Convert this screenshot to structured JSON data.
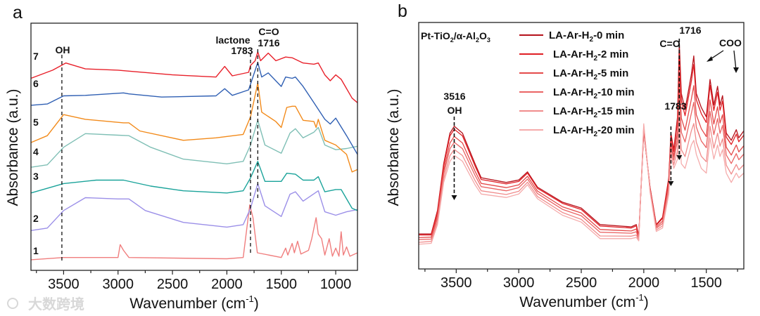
{
  "watermark": "大数跨境",
  "chart_data": [
    {
      "type": "line",
      "panel_label": "a",
      "xlabel": "Wavenumber (cm",
      "xlabel_sup": "-1",
      "xlabel_end": ")",
      "ylabel": "Absorbance (a.u.)",
      "xlim": [
        3800,
        800
      ],
      "ylim": [
        0,
        100
      ],
      "x_reversed": true,
      "xticks": [
        3500,
        3000,
        2500,
        2000,
        1500,
        1000
      ],
      "grid": false,
      "annotations": {
        "oh": "OH",
        "lactone": "lactone",
        "lactone_wn": "1783",
        "co": "C=O",
        "co_wn": "1716"
      },
      "reference_lines": [
        3516,
        1783,
        1716
      ],
      "series": [
        {
          "name": "1",
          "color": "#f07e7e",
          "x": [
            3800,
            3500,
            3000,
            2980,
            2950,
            2900,
            2000,
            1850,
            1790,
            1760,
            1720,
            1500,
            1460,
            1440,
            1400,
            1380,
            1350,
            1320,
            1250,
            1220,
            1180,
            1160,
            1130,
            1100,
            1060,
            1030,
            1000,
            970,
            950,
            930,
            900,
            870,
            800
          ],
          "y": [
            4.3,
            5.2,
            5.2,
            10.4,
            8.1,
            5.2,
            4.7,
            5.2,
            26.5,
            21.3,
            7.1,
            5.2,
            9.0,
            6.2,
            10.9,
            7.1,
            11.8,
            6.6,
            8.1,
            12.8,
            21.3,
            14.7,
            12.8,
            6.2,
            12.8,
            5.7,
            9.0,
            5.7,
            15.6,
            6.2,
            9.5,
            5.7,
            7.1
          ]
        },
        {
          "name": "2",
          "color": "#9b8fe8",
          "x": [
            3800,
            3650,
            3500,
            3300,
            3000,
            2900,
            2750,
            2400,
            2000,
            1850,
            1783,
            1716,
            1650,
            1500,
            1420,
            1370,
            1300,
            1160,
            1100,
            1000,
            900,
            800
          ],
          "y": [
            16.1,
            17.1,
            24.2,
            29.4,
            28.9,
            28.9,
            24.2,
            19.4,
            17.5,
            18.5,
            25.1,
            35.1,
            26.1,
            21.8,
            30.8,
            31.8,
            28.0,
            32.2,
            23.7,
            22.3,
            23.7,
            24.6
          ]
        },
        {
          "name": "3",
          "color": "#1aa39a",
          "x": [
            3800,
            3500,
            3200,
            2950,
            2700,
            2400,
            2000,
            1850,
            1783,
            1716,
            1650,
            1500,
            1450,
            1370,
            1300,
            1200,
            1160,
            1100,
            1000,
            950,
            850,
            800
          ],
          "y": [
            31.3,
            35.1,
            36.5,
            36.5,
            34.1,
            32.2,
            31.3,
            32.2,
            37.4,
            44.1,
            36.0,
            36.0,
            39.3,
            38.9,
            36.5,
            36.5,
            37.9,
            31.8,
            32.7,
            32.7,
            25.1,
            24.2
          ]
        },
        {
          "name": "4",
          "color": "#7fbfb5",
          "x": [
            3800,
            3650,
            3500,
            3300,
            3000,
            2900,
            2700,
            2400,
            2000,
            1850,
            1783,
            1716,
            1650,
            1500,
            1420,
            1370,
            1300,
            1200,
            1160,
            1100,
            1000,
            900,
            800
          ],
          "y": [
            41.7,
            42.7,
            49.8,
            55.3,
            54.7,
            54.5,
            49.8,
            45.0,
            43.1,
            44.1,
            50.7,
            60.7,
            50.7,
            47.4,
            55.5,
            57.3,
            53.6,
            55.9,
            57.8,
            50.7,
            48.8,
            49.3,
            50.2
          ]
        },
        {
          "name": "5",
          "color": "#f28a1a",
          "x": [
            3800,
            3650,
            3500,
            3300,
            2950,
            2900,
            2800,
            2400,
            2100,
            1850,
            1783,
            1716,
            1680,
            1550,
            1500,
            1450,
            1400,
            1370,
            1300,
            1200,
            1180,
            1160,
            1100,
            1000,
            900,
            850,
            800
          ],
          "y": [
            51.7,
            54.5,
            63.0,
            61.1,
            59.7,
            59.7,
            56.4,
            52.6,
            53.6,
            55.0,
            62.1,
            75.8,
            64.0,
            60.2,
            57.8,
            65.9,
            66.4,
            66.4,
            60.7,
            60.2,
            57.8,
            61.1,
            52.6,
            50.7,
            46.9,
            39.8,
            40.8
          ]
        },
        {
          "name": "6",
          "color": "#2f5fb3",
          "x": [
            3800,
            3650,
            3500,
            3300,
            2950,
            2900,
            2600,
            2100,
            2020,
            1950,
            1800,
            1716,
            1680,
            1620,
            1500,
            1460,
            1400,
            1370,
            1300,
            1200,
            1100,
            1050,
            1000,
            900,
            800
          ],
          "y": [
            66.8,
            67.3,
            70.6,
            70.8,
            71.8,
            71.4,
            70.1,
            70.6,
            73.5,
            70.8,
            73.0,
            84.1,
            78.2,
            79.9,
            74.4,
            78.2,
            77.7,
            78.2,
            74.4,
            67.8,
            61.1,
            59.2,
            61.6,
            54.5,
            46.9
          ]
        },
        {
          "name": "7",
          "color": "#e8202a",
          "x": [
            3800,
            3600,
            3480,
            3300,
            3000,
            2900,
            2500,
            2100,
            2020,
            1950,
            1800,
            1783,
            1740,
            1716,
            1690,
            1620,
            1550,
            1460,
            1400,
            1300,
            1200,
            1160,
            1100,
            1050,
            1000,
            950,
            850,
            800
          ],
          "y": [
            77.7,
            81.0,
            83.9,
            81.5,
            81.0,
            80.6,
            79.1,
            78.2,
            82.5,
            78.7,
            80.1,
            82.9,
            84.8,
            88.4,
            84.8,
            87.9,
            84.8,
            86.3,
            86.0,
            83.9,
            83.4,
            83.9,
            79.1,
            76.7,
            79.1,
            77.3,
            69.7,
            67.8
          ]
        }
      ]
    },
    {
      "type": "line",
      "panel_label": "b",
      "xlabel": "Wavenumber (cm",
      "xlabel_sup": "-1",
      "xlabel_end": ")",
      "ylabel": "Absorbance (a.u.)",
      "xlim": [
        3800,
        1200
      ],
      "ylim": [
        0,
        100
      ],
      "x_reversed": true,
      "xticks": [
        3500,
        3000,
        2500,
        2000,
        1500
      ],
      "grid": false,
      "sample": {
        "p1": "Pt-TiO",
        "s1": "2",
        "p2": "/α-Al",
        "s2": "2",
        "p3": "O",
        "s3": "3"
      },
      "legend_placement": "top-center",
      "annotations": {
        "oh_wn": "3516",
        "oh": "OH",
        "lactone_wn": "1783",
        "co": "C=O",
        "co_wn": "1716",
        "coo": "COO"
      },
      "x": [
        3800,
        3700,
        3650,
        3600,
        3550,
        3516,
        3450,
        3350,
        3300,
        3100,
        3000,
        2930,
        2850,
        2650,
        2500,
        2350,
        2100,
        2060,
        2040,
        2000,
        1950,
        1900,
        1850,
        1800,
        1783,
        1760,
        1730,
        1716,
        1700,
        1670,
        1620,
        1600,
        1580,
        1540,
        1500,
        1470,
        1440,
        1410,
        1390,
        1370,
        1340,
        1300,
        1260,
        1240,
        1200
      ],
      "series": [
        {
          "prefix": "LA-Ar-H",
          "sub": "2",
          "suffix": "-0 min",
          "color": "#b5121b",
          "y": [
            14.2,
            14.2,
            23.7,
            42.7,
            55.1,
            57.9,
            55.1,
            42.7,
            37.0,
            35.1,
            36.1,
            39.4,
            33.2,
            27.1,
            24.7,
            18.0,
            17.1,
            18.0,
            13.3,
            56.0,
            33.2,
            18.0,
            20.9,
            37.0,
            55.1,
            48.4,
            61.7,
            91.6,
            71.2,
            64.6,
            78.8,
            86.4,
            71.2,
            65.5,
            61.7,
            76.9,
            66.5,
            74.1,
            66.5,
            70.3,
            55.1,
            52.2,
            56.5,
            53.2,
            56.0
          ]
        },
        {
          "prefix": "LA-Ar-H",
          "sub": "2",
          "suffix": "-2 min",
          "color": "#e01e24",
          "y": [
            13.8,
            13.8,
            23.1,
            41.9,
            54.0,
            56.7,
            54.0,
            41.8,
            36.3,
            34.5,
            35.5,
            38.9,
            32.7,
            26.6,
            24.1,
            17.4,
            16.6,
            17.5,
            13.1,
            56.3,
            33.0,
            17.7,
            20.5,
            36.3,
            54.2,
            47.6,
            60.0,
            88.0,
            68.4,
            62.2,
            76.0,
            83.0,
            68.7,
            63.0,
            59.4,
            74.5,
            64.3,
            71.7,
            64.4,
            68.1,
            53.5,
            50.5,
            54.7,
            51.6,
            54.3
          ]
        },
        {
          "prefix": "LA-Ar-H",
          "sub": "2",
          "suffix": "-5 min",
          "color": "#e44a4a",
          "y": [
            12.7,
            12.9,
            21.7,
            40.0,
            51.1,
            53.8,
            51.1,
            39.7,
            34.7,
            33.0,
            34.1,
            37.6,
            31.6,
            25.2,
            22.7,
            16.0,
            15.4,
            16.2,
            12.6,
            57.0,
            32.5,
            17.0,
            19.4,
            34.7,
            52.1,
            45.7,
            55.7,
            79.1,
            61.2,
            56.3,
            68.8,
            74.4,
            62.6,
            56.9,
            53.7,
            68.6,
            58.8,
            65.8,
            59.2,
            62.6,
            49.4,
            46.2,
            50.3,
            47.5,
            50.0
          ]
        },
        {
          "prefix": "LA-Ar-H",
          "sub": "2",
          "suffix": "-10 min",
          "color": "#ea6464",
          "y": [
            11.9,
            12.1,
            20.6,
            38.5,
            48.8,
            51.4,
            48.8,
            38.0,
            33.4,
            31.7,
            33.0,
            36.5,
            30.6,
            24.2,
            21.6,
            14.9,
            14.5,
            15.1,
            12.3,
            57.6,
            32.2,
            16.5,
            18.5,
            33.4,
            50.4,
            44.2,
            52.3,
            72.0,
            55.5,
            51.5,
            63.1,
            67.6,
            57.6,
            51.9,
            49.2,
            63.9,
            54.5,
            61.0,
            55.0,
            58.3,
            46.2,
            42.8,
            46.8,
            44.3,
            46.6
          ]
        },
        {
          "prefix": "LA-Ar-H",
          "sub": "2",
          "suffix": "-15 min",
          "color": "#f08c8c",
          "y": [
            10.8,
            11.2,
            19.1,
            36.6,
            46.0,
            48.5,
            46.0,
            35.9,
            31.7,
            30.2,
            31.5,
            35.2,
            29.4,
            22.9,
            20.1,
            13.4,
            13.3,
            13.8,
            11.8,
            58.3,
            31.7,
            15.8,
            17.5,
            31.7,
            48.2,
            42.3,
            48.0,
            63.1,
            48.4,
            45.6,
            56.0,
            59.0,
            51.4,
            45.7,
            43.5,
            57.9,
            49.0,
            55.1,
            49.8,
            52.8,
            42.1,
            38.5,
            42.4,
            40.2,
            42.3
          ]
        },
        {
          "prefix": "LA-Ar-H",
          "sub": "2",
          "suffix": "-20 min",
          "color": "#f5abab",
          "y": [
            10.0,
            10.4,
            18.0,
            35.1,
            43.7,
            46.1,
            43.7,
            34.2,
            30.4,
            29.0,
            30.4,
            34.2,
            28.5,
            21.8,
            19.0,
            12.3,
            12.3,
            12.8,
            11.4,
            58.9,
            31.3,
            15.2,
            16.6,
            30.4,
            46.5,
            40.8,
            44.6,
            56.0,
            42.7,
            40.8,
            50.3,
            52.2,
            46.5,
            40.8,
            38.9,
            53.2,
            44.6,
            50.3,
            45.6,
            48.4,
            38.9,
            35.1,
            38.9,
            37.0,
            38.9
          ]
        }
      ]
    }
  ]
}
